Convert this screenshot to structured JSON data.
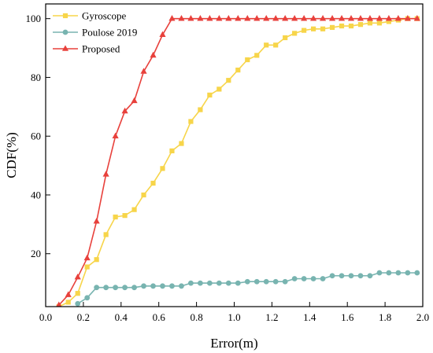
{
  "chart_data": {
    "type": "line",
    "xlabel": "Error(m)",
    "ylabel": "CDF(%)",
    "xlim": [
      0.0,
      2.0
    ],
    "ylim": [
      2,
      105
    ],
    "xticks": [
      0.0,
      0.2,
      0.4,
      0.6,
      0.8,
      1.0,
      1.2,
      1.4,
      1.6,
      1.8,
      2.0
    ],
    "yticks": [
      20,
      40,
      60,
      80,
      100
    ],
    "xtick_labels": [
      "0.0",
      "0.2",
      "0.4",
      "0.6",
      "0.8",
      "1.0",
      "1.2",
      "1.4",
      "1.6",
      "1.8",
      "2.0"
    ],
    "ytick_labels": [
      "20",
      "40",
      "60",
      "80",
      "100"
    ],
    "grid": false,
    "legend_position": "top-left",
    "series": [
      {
        "name": "Gyroscope",
        "color": "#f7d54a",
        "marker": "square",
        "x": [
          0.07,
          0.12,
          0.17,
          0.22,
          0.27,
          0.32,
          0.37,
          0.42,
          0.47,
          0.52,
          0.57,
          0.62,
          0.67,
          0.72,
          0.77,
          0.82,
          0.87,
          0.92,
          0.97,
          1.02,
          1.07,
          1.12,
          1.17,
          1.22,
          1.27,
          1.32,
          1.37,
          1.42,
          1.47,
          1.52,
          1.57,
          1.62,
          1.67,
          1.72,
          1.77,
          1.82,
          1.87,
          1.92,
          1.97
        ],
        "y": [
          2,
          3.5,
          6.5,
          15.5,
          18,
          26.5,
          32.5,
          33,
          35,
          40,
          44,
          49,
          55,
          57.5,
          65,
          69,
          74,
          76,
          79,
          82.5,
          86,
          87.5,
          91,
          91,
          93.5,
          95,
          96,
          96.5,
          96.5,
          97,
          97.5,
          97.5,
          98,
          98.5,
          98.5,
          99,
          99.5,
          100,
          100
        ]
      },
      {
        "name": "Poulose 2019",
        "color": "#78b4b0",
        "marker": "circle",
        "x": [
          0.17,
          0.22,
          0.27,
          0.32,
          0.37,
          0.42,
          0.47,
          0.52,
          0.57,
          0.62,
          0.67,
          0.72,
          0.77,
          0.82,
          0.87,
          0.92,
          0.97,
          1.02,
          1.07,
          1.12,
          1.17,
          1.22,
          1.27,
          1.32,
          1.37,
          1.42,
          1.47,
          1.52,
          1.57,
          1.62,
          1.67,
          1.72,
          1.77,
          1.82,
          1.87,
          1.92,
          1.97
        ],
        "y": [
          3,
          5,
          8.5,
          8.5,
          8.5,
          8.5,
          8.5,
          9,
          9,
          9,
          9,
          9,
          10,
          10,
          10,
          10,
          10,
          10,
          10.5,
          10.5,
          10.5,
          10.5,
          10.5,
          11.5,
          11.5,
          11.5,
          11.5,
          12.5,
          12.5,
          12.5,
          12.5,
          12.5,
          13.5,
          13.5,
          13.5,
          13.5,
          13.5
        ]
      },
      {
        "name": "Proposed",
        "color": "#e8413c",
        "marker": "triangle",
        "x": [
          0.07,
          0.12,
          0.17,
          0.22,
          0.27,
          0.32,
          0.37,
          0.42,
          0.47,
          0.52,
          0.57,
          0.62,
          0.67,
          0.72,
          0.77,
          0.82,
          0.87,
          0.92,
          0.97,
          1.02,
          1.07,
          1.12,
          1.17,
          1.22,
          1.27,
          1.32,
          1.37,
          1.42,
          1.47,
          1.52,
          1.57,
          1.62,
          1.67,
          1.72,
          1.77,
          1.82,
          1.87,
          1.92,
          1.97
        ],
        "y": [
          2.5,
          6,
          12,
          18.5,
          31,
          47,
          60,
          68.5,
          72,
          82,
          87.5,
          94.5,
          100,
          100,
          100,
          100,
          100,
          100,
          100,
          100,
          100,
          100,
          100,
          100,
          100,
          100,
          100,
          100,
          100,
          100,
          100,
          100,
          100,
          100,
          100,
          100,
          100,
          100,
          100
        ]
      }
    ]
  }
}
